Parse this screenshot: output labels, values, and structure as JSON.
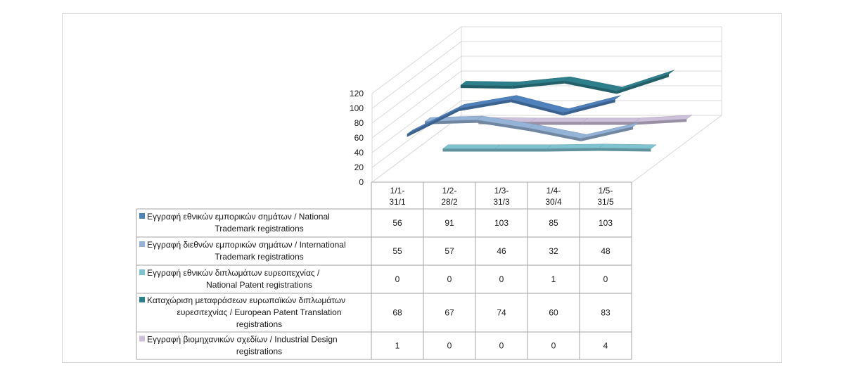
{
  "chart_data": {
    "type": "line",
    "style": "3d-line-with-data-table",
    "title": "",
    "categories": [
      "1/1-31/1",
      "1/2-28/2",
      "1/3-31/3",
      "1/4-30/4",
      "1/5-31/5"
    ],
    "category_lines": [
      [
        "1/1-",
        "31/1"
      ],
      [
        "1/2-",
        "28/2"
      ],
      [
        "1/3-",
        "31/3"
      ],
      [
        "1/4-",
        "30/4"
      ],
      [
        "1/5-",
        "31/5"
      ]
    ],
    "yticks": [
      "0",
      "20",
      "40",
      "60",
      "80",
      "100",
      "120"
    ],
    "ylim": [
      0,
      120
    ],
    "series": [
      {
        "name": "Εγγραφή εθνικών εμπορικών σημάτων / National Trademark registrations",
        "label_lines": [
          "Εγγραφή εθνικών εμπορικών σημάτων / National",
          "Trademark registrations"
        ],
        "color": "#4f81bd",
        "values": [
          56,
          91,
          103,
          85,
          103
        ]
      },
      {
        "name": "Εγγραφή διεθνών εμπορικών σημάτων / International Trademark registrations",
        "label_lines": [
          "Εγγραφή διεθνών εμπορικών σημάτων / International",
          "Trademark registrations"
        ],
        "color": "#95b3d7",
        "values": [
          55,
          57,
          46,
          32,
          48
        ]
      },
      {
        "name": "Εγγραφή εθνικών διπλωμάτων ευρεσιτεχνίας / National Patent registrations",
        "label_lines": [
          "Εγγραφή εθνικών διπλωμάτων ευρεσιτεχνίας /",
          "National Patent registrations"
        ],
        "color": "#7fc3d0",
        "values": [
          0,
          0,
          0,
          1,
          0
        ]
      },
      {
        "name": "Καταχώριση μεταφράσεων ευρωπαϊκών διπλωμάτων ευρεσιτεχνίας / European Patent Translation registrations",
        "label_lines": [
          "Καταχώριση μεταφράσεων ευρωπαϊκών διπλωμάτων",
          "ευρεσιτεχνίας / European Patent Translation",
          "registrations"
        ],
        "color": "#2e7f8c",
        "values": [
          68,
          67,
          74,
          60,
          83
        ]
      },
      {
        "name": "Εγγραφή βιομηχανικών σχεδίων / Industrial Design registrations",
        "label_lines": [
          "Εγγραφή βιομηχανικών σχεδίων / Industrial Design",
          "registrations"
        ],
        "color": "#ccc0da",
        "values": [
          1,
          0,
          0,
          0,
          4
        ]
      }
    ],
    "legend": "data-table-left",
    "grid": true
  }
}
